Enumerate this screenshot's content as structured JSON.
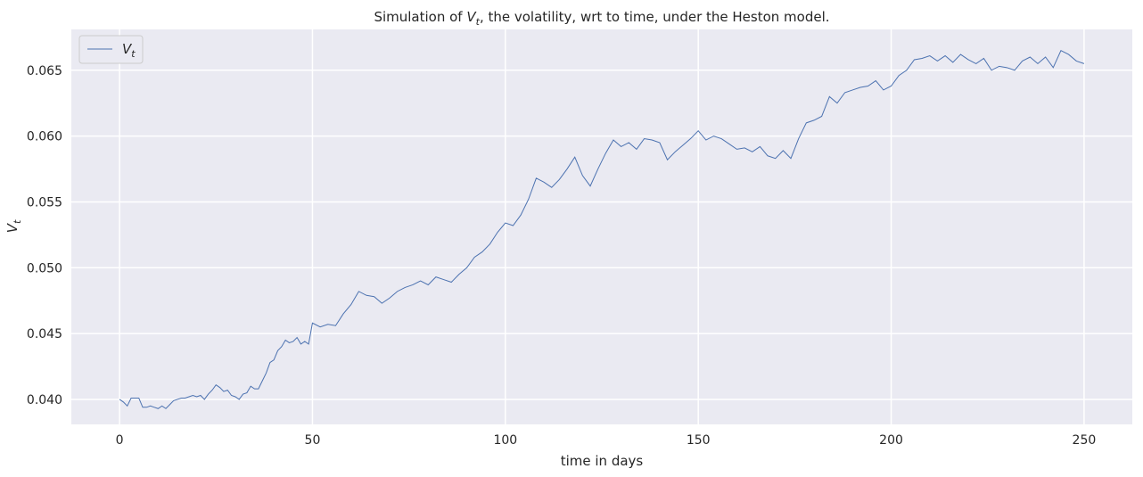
{
  "chart_data": {
    "type": "line",
    "title": "Simulation of V_t, the volatility, wrt to time, under the Heston model.",
    "title_parts": {
      "before": "Simulation of ",
      "symbol": "V",
      "subscript": "t",
      "after": ", the volatility, wrt to time, under the Heston model."
    },
    "xlabel": "time in days",
    "ylabel": "V_t",
    "ylabel_parts": {
      "symbol": "V",
      "subscript": "t"
    },
    "xlim": [
      -12.5,
      262.5
    ],
    "ylim": [
      0.0381,
      0.0681
    ],
    "x_ticks": [
      0,
      50,
      100,
      150,
      200,
      250
    ],
    "x_tick_labels": [
      "0",
      "50",
      "100",
      "150",
      "200",
      "250"
    ],
    "y_ticks": [
      0.04,
      0.045,
      0.05,
      0.055,
      0.06,
      0.065
    ],
    "y_tick_labels": [
      "0.040",
      "0.045",
      "0.050",
      "0.055",
      "0.060",
      "0.065"
    ],
    "grid": true,
    "legend": {
      "placement": "top-left",
      "entries": [
        {
          "symbol": "V",
          "subscript": "t"
        }
      ]
    },
    "series": [
      {
        "color": "#4c72b0",
        "x": [
          0,
          1,
          2,
          3,
          4,
          5,
          6,
          7,
          8,
          9,
          10,
          11,
          12,
          13,
          14,
          15,
          16,
          17,
          18,
          19,
          20,
          21,
          22,
          23,
          24,
          25,
          26,
          27,
          28,
          29,
          30,
          31,
          32,
          33,
          34,
          35,
          36,
          37,
          38,
          39,
          40,
          41,
          42,
          43,
          44,
          45,
          46,
          47,
          48,
          49,
          50,
          52,
          54,
          56,
          58,
          60,
          62,
          64,
          66,
          68,
          70,
          72,
          74,
          76,
          78,
          80,
          82,
          84,
          86,
          88,
          90,
          92,
          94,
          96,
          98,
          100,
          102,
          104,
          106,
          108,
          110,
          112,
          114,
          116,
          118,
          120,
          122,
          124,
          126,
          128,
          130,
          132,
          134,
          136,
          138,
          140,
          142,
          144,
          146,
          148,
          150,
          152,
          154,
          156,
          158,
          160,
          162,
          164,
          166,
          168,
          170,
          172,
          174,
          176,
          178,
          180,
          182,
          184,
          186,
          188,
          190,
          192,
          194,
          196,
          198,
          200,
          202,
          204,
          206,
          208,
          210,
          212,
          214,
          216,
          218,
          220,
          222,
          224,
          226,
          228,
          230,
          232,
          234,
          236,
          238,
          240,
          242,
          244,
          246,
          248,
          250
        ],
        "values": [
          0.04,
          0.0398,
          0.0395,
          0.0401,
          0.0401,
          0.0401,
          0.0394,
          0.0394,
          0.0395,
          0.0394,
          0.0393,
          0.0395,
          0.0393,
          0.0396,
          0.0399,
          0.04,
          0.0401,
          0.0401,
          0.0402,
          0.0403,
          0.0402,
          0.0403,
          0.04,
          0.0404,
          0.0407,
          0.0411,
          0.0409,
          0.0406,
          0.0407,
          0.0403,
          0.0402,
          0.04,
          0.0404,
          0.0405,
          0.041,
          0.0408,
          0.0408,
          0.0414,
          0.042,
          0.0428,
          0.043,
          0.0437,
          0.044,
          0.0445,
          0.0443,
          0.0444,
          0.0447,
          0.0442,
          0.0444,
          0.0442,
          0.0458,
          0.0455,
          0.0457,
          0.0456,
          0.0465,
          0.0472,
          0.0482,
          0.0479,
          0.0478,
          0.0473,
          0.0477,
          0.0482,
          0.0485,
          0.0487,
          0.049,
          0.0487,
          0.0493,
          0.0491,
          0.0489,
          0.0495,
          0.05,
          0.0508,
          0.0512,
          0.0518,
          0.0527,
          0.0534,
          0.0532,
          0.054,
          0.0552,
          0.0568,
          0.0565,
          0.0561,
          0.0567,
          0.0575,
          0.0584,
          0.057,
          0.0562,
          0.0575,
          0.0587,
          0.0597,
          0.0592,
          0.0595,
          0.059,
          0.0598,
          0.0597,
          0.0595,
          0.0582,
          0.0588,
          0.0593,
          0.0598,
          0.0604,
          0.0597,
          0.06,
          0.0598,
          0.0594,
          0.059,
          0.0591,
          0.0588,
          0.0592,
          0.0585,
          0.0583,
          0.0589,
          0.0583,
          0.0598,
          0.061,
          0.0612,
          0.0615,
          0.063,
          0.0625,
          0.0633,
          0.0635,
          0.0637,
          0.0638,
          0.0642,
          0.0635,
          0.0638,
          0.0646,
          0.065,
          0.0658,
          0.0659,
          0.0661,
          0.0657,
          0.0661,
          0.0656,
          0.0662,
          0.0658,
          0.0655,
          0.0659,
          0.065,
          0.0653,
          0.0652,
          0.065,
          0.0657,
          0.066,
          0.0655,
          0.066,
          0.0652,
          0.0665,
          0.0662,
          0.0657,
          0.0655
        ]
      }
    ]
  }
}
